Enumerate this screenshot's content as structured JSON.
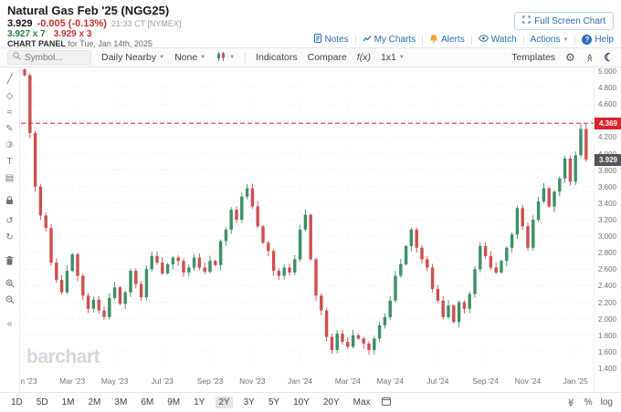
{
  "header": {
    "title": "Natural Gas Feb '25 (NGG25)",
    "last_price": "3.929",
    "change": "-0.005 (-0.13%)",
    "quote_time": "21:33 CT [NYMEX]",
    "bid": "3.927 x 7",
    "ask": "3.929 x 3",
    "panel_label": "CHART PANEL",
    "panel_date": "for Tue, Jan 14th, 2025",
    "fullscreen_button": "Full Screen Chart",
    "links": [
      "Notes",
      "My Charts",
      "Alerts",
      "Watch",
      "Actions",
      "Help"
    ]
  },
  "toolbar": {
    "symbol_placeholder": "Symbol...",
    "frequency": "Daily Nearby",
    "tools": "None",
    "indicators": "Indicators",
    "compare": "Compare",
    "functions": "f(x)",
    "layout": "1x1",
    "templates": "Templates"
  },
  "rail_tools": [
    "trendline",
    "shapes",
    "curves",
    "annotations",
    "markers",
    "text",
    "patterns",
    "lock",
    "undo",
    "redo",
    "delete",
    "zoom-in",
    "zoom-out",
    "collapse"
  ],
  "bottom_bar": {
    "ranges": [
      "1D",
      "5D",
      "1M",
      "2M",
      "3M",
      "6M",
      "9M",
      "1Y",
      "2Y",
      "3Y",
      "5Y",
      "10Y",
      "20Y",
      "Max"
    ],
    "active_range": "2Y",
    "scale_percent": "%",
    "scale_log": "log"
  },
  "colors": {
    "accent_blue": "#2a6db5",
    "down_red": "#c9302c",
    "up_green": "#22803d"
  },
  "chart_data": {
    "type": "candlestick",
    "title": "Natural Gas Feb '25 (NGG25) Daily Nearby",
    "ylim": [
      1.4,
      5.0
    ],
    "y_ticks": [
      "5.000",
      "4.800",
      "4.600",
      "4.400",
      "4.200",
      "4.000",
      "3.800",
      "3.600",
      "3.400",
      "3.200",
      "3.000",
      "2.800",
      "2.600",
      "2.400",
      "2.200",
      "2.000",
      "1.800",
      "1.600",
      "1.400"
    ],
    "x_labels": [
      {
        "label": "Jan '23",
        "i": 0
      },
      {
        "label": "Mar '23",
        "i": 9
      },
      {
        "label": "May '23",
        "i": 17
      },
      {
        "label": "Jul '23",
        "i": 26
      },
      {
        "label": "Sep '23",
        "i": 35
      },
      {
        "label": "Nov '23",
        "i": 43
      },
      {
        "label": "Jan '24",
        "i": 52
      },
      {
        "label": "Mar '24",
        "i": 61
      },
      {
        "label": "May '24",
        "i": 69
      },
      {
        "label": "Jul '24",
        "i": 78
      },
      {
        "label": "Sep '24",
        "i": 87
      },
      {
        "label": "Nov '24",
        "i": 95
      },
      {
        "label": "Jan '25",
        "i": 104
      }
    ],
    "closes": [
      4.95,
      4.25,
      3.6,
      3.25,
      3.1,
      2.68,
      2.47,
      2.32,
      2.58,
      2.78,
      2.52,
      2.28,
      2.12,
      2.23,
      2.1,
      2.02,
      2.25,
      2.38,
      2.18,
      2.32,
      2.58,
      2.42,
      2.26,
      2.6,
      2.76,
      2.68,
      2.55,
      2.66,
      2.74,
      2.7,
      2.56,
      2.62,
      2.74,
      2.62,
      2.57,
      2.7,
      2.65,
      2.94,
      3.08,
      3.32,
      3.2,
      3.48,
      3.58,
      3.36,
      3.12,
      2.92,
      2.82,
      2.58,
      2.52,
      2.62,
      2.56,
      2.72,
      3.08,
      3.26,
      2.72,
      2.28,
      2.1,
      1.78,
      1.62,
      1.82,
      1.72,
      1.66,
      1.8,
      1.76,
      1.7,
      1.62,
      1.76,
      1.92,
      2.02,
      2.22,
      2.52,
      2.66,
      2.88,
      3.08,
      2.86,
      2.72,
      2.62,
      2.36,
      2.22,
      2.02,
      2.16,
      1.96,
      2.2,
      2.12,
      2.3,
      2.6,
      2.88,
      2.76,
      2.62,
      2.56,
      2.7,
      2.86,
      3.02,
      3.34,
      3.12,
      2.86,
      3.2,
      3.42,
      3.58,
      3.36,
      3.54,
      3.7,
      3.94,
      3.66,
      3.98,
      4.3,
      3.929
    ],
    "high_line": {
      "value": 4.369,
      "label": "4.369",
      "color": "#e0393e"
    },
    "last": {
      "value": 3.929,
      "label": "3.929"
    },
    "up_color": "#3d8f66",
    "down_color": "#cc4f4f",
    "grid": true,
    "watermark": "barchart"
  }
}
